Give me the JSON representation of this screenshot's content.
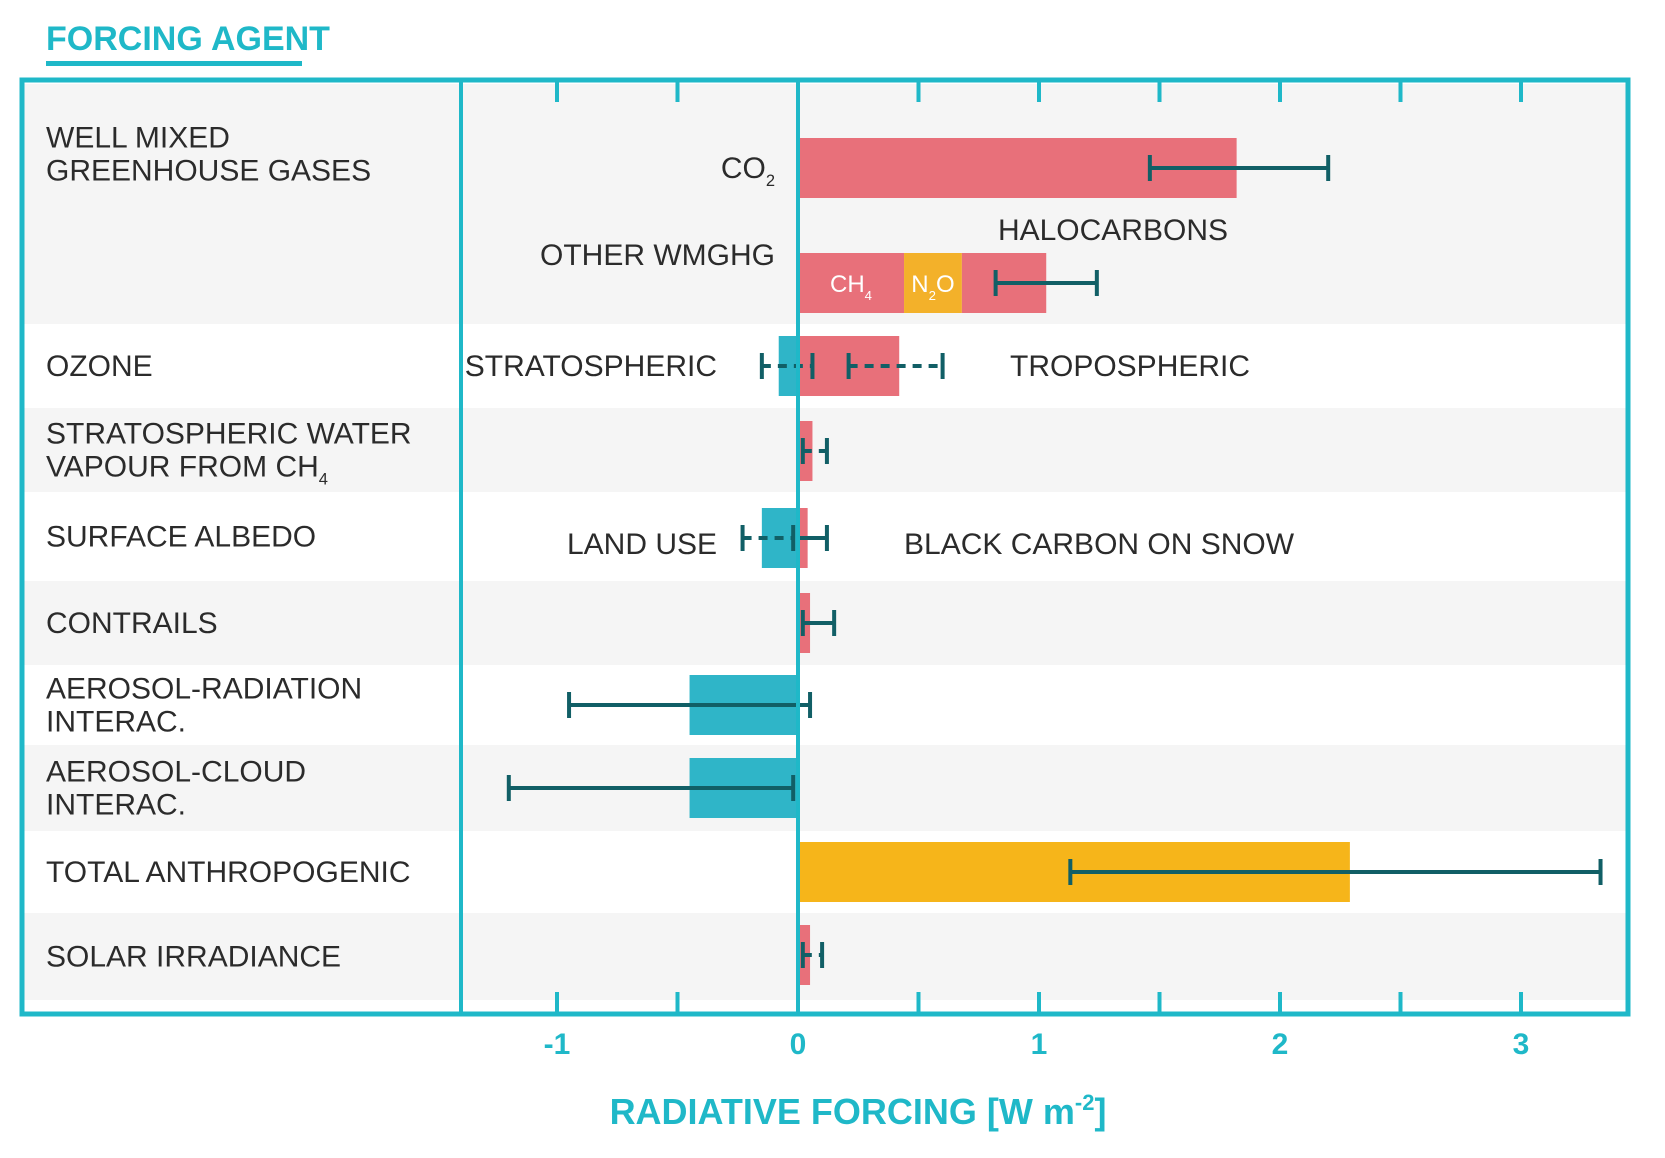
{
  "header": {
    "title": "FORCING AGENT"
  },
  "colors": {
    "accent": "#1fb8c8",
    "positive": "#e8707a",
    "negative": "#2fb5c8",
    "total": "#f6b51a",
    "n2o": "#f3b12a",
    "errorbar": "#115f66",
    "band": "#f5f5f5",
    "text": "#2b2b2b"
  },
  "chart_data": {
    "type": "bar",
    "orientation": "horizontal",
    "title": "FORCING AGENT",
    "xlabel": "RADIATIVE FORCING [W m",
    "xlabel_sup": "-2",
    "xlabel_close": "]",
    "xlim": [
      -1.4,
      3.4
    ],
    "xticks": [
      -1,
      0,
      1,
      2,
      3
    ],
    "xtick_labels": [
      "-1",
      "0",
      "1",
      "2",
      "3"
    ],
    "minor_ticks": [
      -0.5,
      0.5,
      1.5,
      2.5
    ],
    "categories": [
      {
        "id": "wmghg",
        "lines": [
          "WELL MIXED",
          "GREENHOUSE GASES"
        ]
      },
      {
        "id": "ozone",
        "lines": [
          "OZONE"
        ]
      },
      {
        "id": "h2o",
        "lines": [
          "STRATOSPHERIC WATER",
          "VAPOUR FROM CH"
        ],
        "sub": "4"
      },
      {
        "id": "albedo",
        "lines": [
          "SURFACE ALBEDO"
        ]
      },
      {
        "id": "contrails",
        "lines": [
          "CONTRAILS"
        ]
      },
      {
        "id": "ari",
        "lines": [
          "AEROSOL-RADIATION",
          "INTERAC."
        ]
      },
      {
        "id": "aci",
        "lines": [
          "AEROSOL-CLOUD",
          "INTERAC."
        ]
      },
      {
        "id": "total",
        "lines": [
          "TOTAL ANTHROPOGENIC"
        ],
        "highlight": true
      },
      {
        "id": "solar",
        "lines": [
          "SOLAR IRRADIANCE"
        ]
      }
    ],
    "bars": [
      {
        "name": "co2-bar",
        "category": "wmghg",
        "slot": 0,
        "start": 0,
        "end": 1.82,
        "color": "positive",
        "label": "CO",
        "label_sub": "2",
        "label_side": "left",
        "error": {
          "low": 1.46,
          "high": 2.2,
          "dashed": false
        }
      },
      {
        "name": "ch4-bar",
        "category": "wmghg",
        "slot": 1,
        "start": 0,
        "end": 0.44,
        "color": "positive",
        "inside_label": "CH",
        "inside_sub": "4"
      },
      {
        "name": "n2o-bar",
        "category": "wmghg",
        "slot": 1,
        "start": 0.44,
        "end": 0.68,
        "color": "n2o",
        "inside_label": "N",
        "inside_sub": "2",
        "inside_after": "O"
      },
      {
        "name": "halocarbons-bar",
        "category": "wmghg",
        "slot": 1,
        "start": 0.68,
        "end": 1.03,
        "color": "positive",
        "error": {
          "low": 0.82,
          "high": 1.24,
          "dashed": false
        }
      },
      {
        "name": "stratospheric-ozone-bar",
        "category": "ozone",
        "start": -0.08,
        "end": 0,
        "color": "negative",
        "error": {
          "low": -0.15,
          "high": 0.06,
          "dashed": true
        }
      },
      {
        "name": "tropospheric-ozone-bar",
        "category": "ozone",
        "start": 0,
        "end": 0.42,
        "color": "positive",
        "error": {
          "low": 0.21,
          "high": 0.6,
          "dashed": true
        }
      },
      {
        "name": "water-vapour-bar",
        "category": "h2o",
        "start": 0,
        "end": 0.06,
        "color": "positive",
        "error": {
          "low": 0.02,
          "high": 0.12,
          "dashed": true
        }
      },
      {
        "name": "land-use-bar",
        "category": "albedo",
        "start": -0.15,
        "end": 0,
        "color": "negative",
        "error": {
          "low": -0.23,
          "high": -0.02,
          "dashed": true
        }
      },
      {
        "name": "black-carbon-snow-bar",
        "category": "albedo",
        "start": 0,
        "end": 0.04,
        "color": "positive",
        "error": {
          "low": 0.0,
          "high": 0.12,
          "dashed": false
        }
      },
      {
        "name": "contrails-bar",
        "category": "contrails",
        "start": 0,
        "end": 0.05,
        "color": "positive",
        "error": {
          "low": 0.02,
          "high": 0.15,
          "dashed": false
        }
      },
      {
        "name": "aerosol-radiation-bar",
        "category": "ari",
        "start": -0.45,
        "end": 0,
        "color": "negative",
        "error": {
          "low": -0.95,
          "high": 0.05,
          "dashed": false
        }
      },
      {
        "name": "aerosol-cloud-bar",
        "category": "aci",
        "start": -0.45,
        "end": 0,
        "color": "negative",
        "error": {
          "low": -1.2,
          "high": -0.02,
          "dashed": false
        }
      },
      {
        "name": "total-anthropogenic-bar",
        "category": "total",
        "start": 0,
        "end": 2.29,
        "color": "total",
        "error": {
          "low": 1.13,
          "high": 3.33,
          "dashed": false
        }
      },
      {
        "name": "solar-irradiance-bar",
        "category": "solar",
        "start": 0,
        "end": 0.05,
        "color": "positive",
        "error": {
          "low": 0.02,
          "high": 0.1,
          "dashed": true
        }
      }
    ],
    "annotations": [
      {
        "name": "co2-label",
        "text": "CO",
        "sub": "2"
      },
      {
        "name": "halocarbons-label",
        "text": "HALOCARBONS"
      },
      {
        "name": "other-wmghg-label",
        "text": "OTHER WMGHG"
      },
      {
        "name": "stratospheric-label",
        "text": "STRATOSPHERIC"
      },
      {
        "name": "tropospheric-label",
        "text": "TROPOSPHERIC"
      },
      {
        "name": "land-use-label",
        "text": "LAND USE"
      },
      {
        "name": "black-carbon-label",
        "text": "BLACK CARBON ON SNOW"
      }
    ]
  }
}
